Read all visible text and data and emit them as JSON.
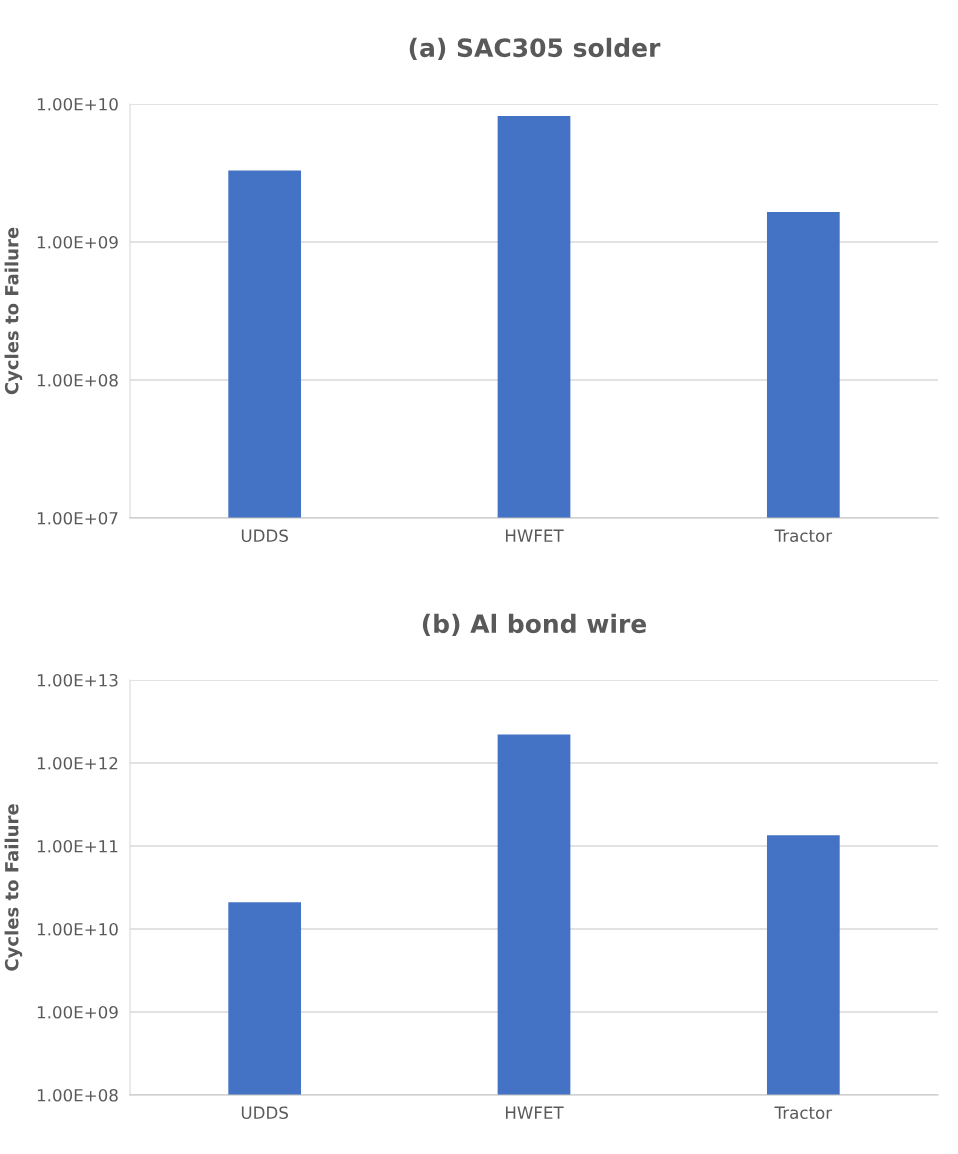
{
  "chart_data": [
    {
      "type": "bar",
      "title": "(a) SAC305 solder",
      "ylabel": "Cycles to Failure",
      "categories": [
        "UDDS",
        "HWFET",
        "Tractor"
      ],
      "values": [
        3300000000.0,
        8200000000.0,
        1650000000.0
      ],
      "color": "#4472c4",
      "log": "y",
      "ylim": [
        10000000.0,
        10000000000.0
      ],
      "yticks": [
        {
          "value": 10000000.0,
          "label": "1.00E+07"
        },
        {
          "value": 100000000.0,
          "label": "1.00E+08"
        },
        {
          "value": 1000000000.0,
          "label": "1.00E+09"
        },
        {
          "value": 10000000000.0,
          "label": "1.00E+10"
        }
      ],
      "grid": "y"
    },
    {
      "type": "bar",
      "title": "(b) Al bond wire",
      "ylabel": "Cycles to Failure",
      "categories": [
        "UDDS",
        "HWFET",
        "Tractor"
      ],
      "values": [
        21000000000.0,
        2200000000000.0,
        135000000000.0
      ],
      "color": "#4472c4",
      "log": "y",
      "ylim": [
        100000000.0,
        10000000000000.0
      ],
      "yticks": [
        {
          "value": 100000000.0,
          "label": "1.00E+08"
        },
        {
          "value": 1000000000.0,
          "label": "1.00E+09"
        },
        {
          "value": 10000000000.0,
          "label": "1.00E+10"
        },
        {
          "value": 100000000000.0,
          "label": "1.00E+11"
        },
        {
          "value": 1000000000000.0,
          "label": "1.00E+12"
        },
        {
          "value": 10000000000000.0,
          "label": "1.00E+13"
        }
      ],
      "grid": "y"
    }
  ]
}
